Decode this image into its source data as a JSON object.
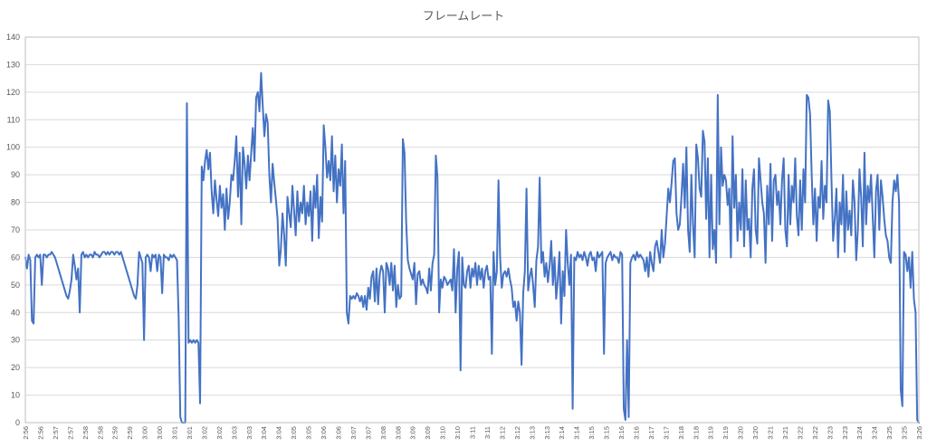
{
  "chart_data": {
    "type": "line",
    "title": "フレームレート",
    "xlabel": "",
    "ylabel": "",
    "ylim": [
      0,
      140
    ],
    "yticks": [
      0,
      10,
      20,
      30,
      40,
      50,
      60,
      70,
      80,
      90,
      100,
      110,
      120,
      130,
      140
    ],
    "grid": true,
    "legend": "none",
    "colors": {
      "line": "#4472c4",
      "grid": "#d9d9d9",
      "axis": "#bfbfbf",
      "text": "#595959"
    },
    "x_tick_labels": [
      "2:56",
      "2:56",
      "2:57",
      "2:57",
      "2:58",
      "2:58",
      "2:59",
      "2:59",
      "3:00",
      "3:00",
      "3:01",
      "3:01",
      "3:02",
      "3:02",
      "3:03",
      "3:03",
      "3:04",
      "3:04",
      "3:05",
      "3:05",
      "3:06",
      "3:06",
      "3:07",
      "3:07",
      "3:08",
      "3:08",
      "3:09",
      "3:09",
      "3:10",
      "3:10",
      "3:11",
      "3:11",
      "3:12",
      "3:12",
      "3:13",
      "3:13",
      "3:14",
      "3:14",
      "3:15",
      "3:15",
      "3:16",
      "3:16",
      "3:17",
      "3:17",
      "3:18",
      "3:18",
      "3:19",
      "3:19",
      "3:20",
      "3:20",
      "3:21",
      "3:21",
      "3:22",
      "3:22",
      "3:23",
      "3:23",
      "3:24",
      "3:24",
      "3:25",
      "3:25",
      "3:26"
    ],
    "series": [
      {
        "values": [
          60,
          56,
          61,
          59,
          37,
          36,
          60,
          61,
          60,
          61,
          50,
          61,
          61,
          60,
          61,
          61,
          62,
          61,
          60,
          58,
          56,
          54,
          52,
          50,
          48,
          46,
          45,
          48,
          52,
          61,
          57,
          52,
          56,
          40,
          61,
          62,
          60,
          61,
          60,
          61,
          61,
          60,
          62,
          61,
          61,
          60,
          61,
          62,
          62,
          61,
          62,
          61,
          62,
          62,
          61,
          62,
          62,
          61,
          62,
          60,
          58,
          56,
          54,
          52,
          50,
          48,
          46,
          45,
          50,
          62,
          60,
          58,
          30,
          60,
          61,
          60,
          55,
          61,
          60,
          61,
          55,
          61,
          60,
          47,
          61,
          60,
          60,
          59,
          61,
          60,
          61,
          60,
          59,
          38,
          2,
          0,
          0,
          0,
          116,
          29,
          30,
          29,
          30,
          29,
          30,
          29,
          7,
          93,
          88,
          95,
          99,
          92,
          98,
          84,
          76,
          88,
          81,
          75,
          86,
          78,
          83,
          70,
          85,
          74,
          80,
          90,
          88,
          95,
          104,
          82,
          98,
          72,
          100,
          94,
          85,
          97,
          88,
          98,
          107,
          95,
          118,
          120,
          113,
          127,
          115,
          104,
          112,
          109,
          90,
          80,
          94,
          87,
          81,
          74,
          57,
          63,
          76,
          68,
          57,
          82,
          76,
          71,
          86,
          77,
          68,
          84,
          73,
          80,
          76,
          86,
          72,
          80,
          75,
          84,
          66,
          86,
          78,
          90,
          67,
          82,
          73,
          108,
          100,
          89,
          95,
          88,
          104,
          84,
          97,
          80,
          92,
          86,
          101,
          76,
          95,
          40,
          36,
          46,
          45,
          46,
          45,
          47,
          46,
          44,
          46,
          42,
          46,
          41,
          49,
          45,
          53,
          55,
          44,
          56,
          43,
          54,
          57,
          55,
          40,
          58,
          56,
          50,
          58,
          48,
          57,
          42,
          50,
          45,
          46,
          103,
          98,
          73,
          59,
          56,
          54,
          52,
          58,
          43,
          54,
          55,
          50,
          52,
          50,
          49,
          47,
          56,
          48,
          58,
          61,
          97,
          89,
          40,
          52,
          49,
          53,
          52,
          50,
          51,
          52,
          48,
          63,
          40,
          56,
          62,
          19,
          60,
          50,
          49,
          55,
          57,
          49,
          56,
          53,
          58,
          50,
          57,
          52,
          56,
          49,
          55,
          57,
          52,
          53,
          25,
          62,
          50,
          55,
          88,
          60,
          49,
          54,
          55,
          53,
          56,
          52,
          49,
          42,
          44,
          37,
          44,
          40,
          21,
          47,
          55,
          85,
          48,
          53,
          56,
          50,
          42,
          59,
          64,
          89,
          58,
          62,
          53,
          58,
          51,
          57,
          66,
          50,
          60,
          45,
          52,
          62,
          36,
          55,
          46,
          70,
          58,
          50,
          61,
          5,
          60,
          59,
          62,
          60,
          61,
          59,
          62,
          60,
          57,
          61,
          62,
          59,
          60,
          55,
          62,
          60,
          61,
          62,
          25,
          58,
          60,
          61,
          62,
          59,
          61,
          60,
          60,
          58,
          62,
          61,
          5,
          1,
          30,
          2,
          58,
          60,
          61,
          59,
          62,
          60,
          61,
          60,
          59,
          55,
          60,
          53,
          62,
          58,
          55,
          64,
          66,
          62,
          58,
          70,
          60,
          65,
          75,
          85,
          80,
          87,
          95,
          96,
          76,
          70,
          72,
          82,
          94,
          78,
          100,
          70,
          62,
          90,
          72,
          60,
          101,
          96,
          85,
          82,
          106,
          102,
          74,
          96,
          60,
          90,
          63,
          70,
          58,
          119,
          72,
          100,
          86,
          90,
          88,
          79,
          85,
          60,
          104,
          78,
          90,
          66,
          80,
          70,
          92,
          64,
          88,
          70,
          74,
          60,
          85,
          92,
          70,
          65,
          96,
          88,
          80,
          76,
          58,
          86,
          72,
          94,
          66,
          88,
          90,
          79,
          84,
          72,
          88,
          96,
          70,
          64,
          90,
          72,
          86,
          80,
          96,
          75,
          68,
          88,
          70,
          92,
          80,
          119,
          118,
          112,
          90,
          72,
          85,
          66,
          82,
          78,
          95,
          74,
          86,
          80,
          117,
          113,
          88,
          66,
          74,
          85,
          60,
          80,
          72,
          90,
          62,
          84,
          70,
          77,
          68,
          88,
          80,
          59,
          70,
          92,
          82,
          64,
          98,
          72,
          86,
          80,
          90,
          75,
          60,
          84,
          90,
          70,
          88,
          82,
          74,
          68,
          66,
          60,
          58,
          80,
          88,
          84,
          90,
          80,
          12,
          6,
          62,
          61,
          55,
          60,
          49,
          62,
          45,
          40,
          1,
          0
        ]
      }
    ]
  }
}
